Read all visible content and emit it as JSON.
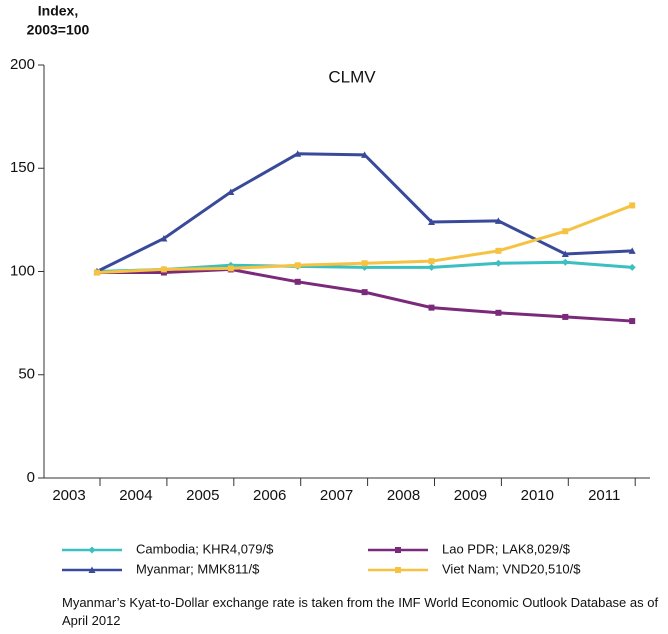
{
  "chart_data": {
    "type": "line",
    "title": "CLMV",
    "ylabel_lines": [
      "Index,",
      "2003=100"
    ],
    "categories": [
      "2003",
      "2004",
      "2005",
      "2006",
      "2007",
      "2008",
      "2009",
      "2010",
      "2011"
    ],
    "series": [
      {
        "name": "Cambodia; KHR4,079/$",
        "color": "#3bbfbf",
        "marker": "diamond",
        "values": [
          100,
          101,
          103,
          102.5,
          102,
          102,
          104,
          104.5,
          102
        ]
      },
      {
        "name": "Lao PDR; LAK8,029/$",
        "color": "#7b2a7b",
        "marker": "square",
        "values": [
          99.5,
          99.5,
          101,
          95,
          90,
          82.5,
          80,
          78,
          76
        ]
      },
      {
        "name": "Myanmar; MMK811/$",
        "color": "#3a4a9a",
        "marker": "triangle",
        "values": [
          100,
          116,
          138.5,
          157,
          156.5,
          124,
          124.5,
          108.5,
          110
        ]
      },
      {
        "name": "Viet Nam; VND20,510/$",
        "color": "#f5c242",
        "marker": "square",
        "values": [
          99.5,
          101,
          101.5,
          103,
          104,
          105,
          110,
          119.5,
          132
        ]
      }
    ],
    "ylim": [
      0,
      200
    ],
    "yticks": [
      0,
      50,
      100,
      150,
      200
    ],
    "note": "Myanmar’s Kyat-to-Dollar exchange rate is taken from the IMF World Economic Outlook Database as of April 2012"
  }
}
